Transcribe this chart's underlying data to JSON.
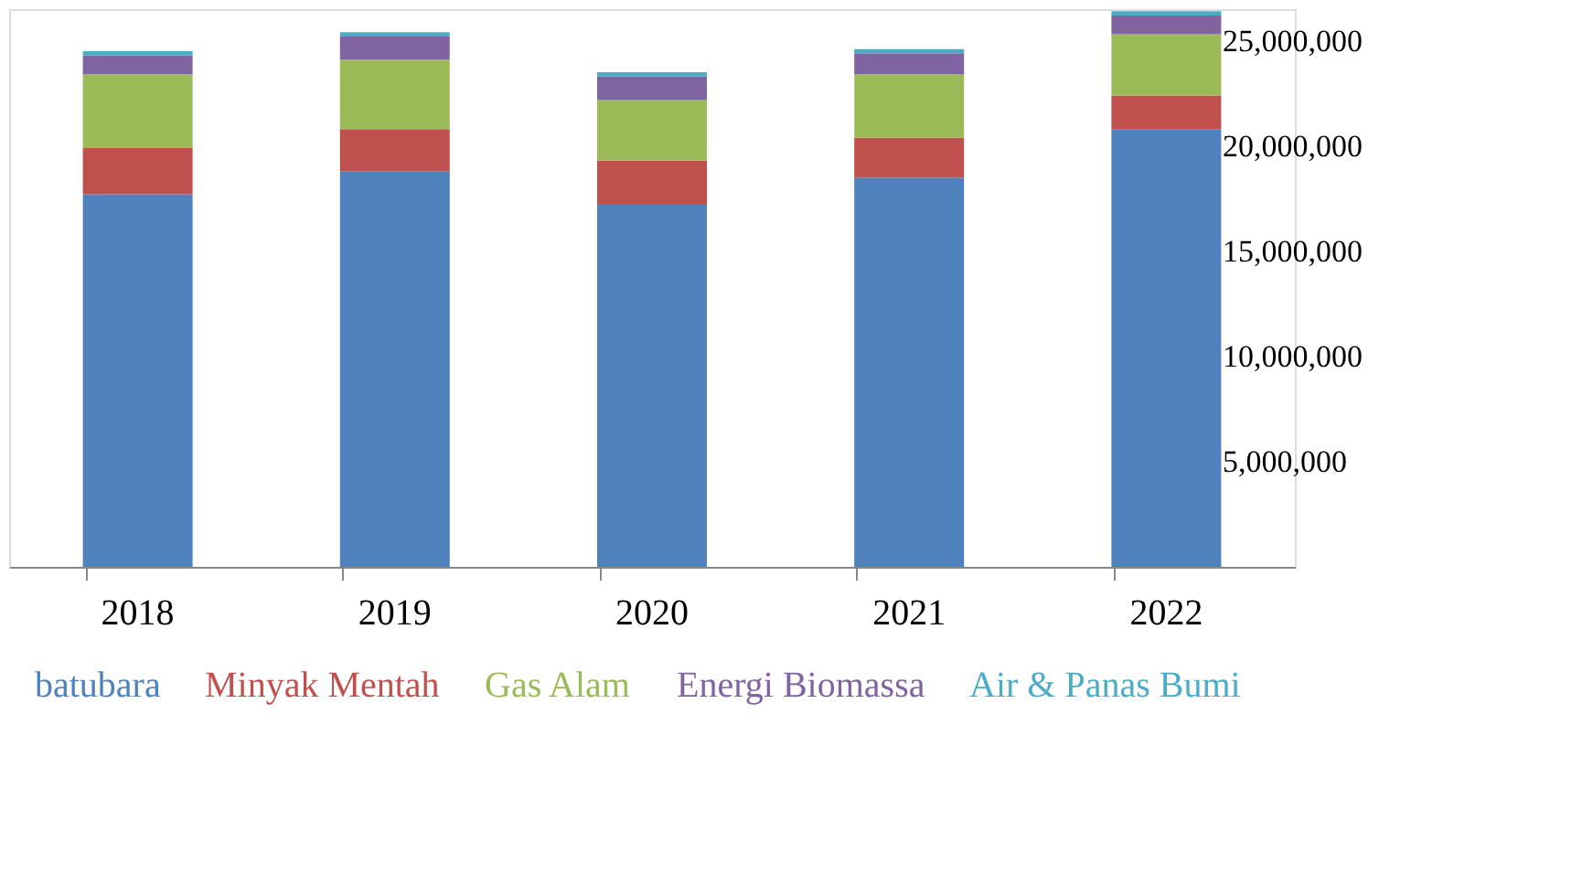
{
  "chart_data": {
    "type": "bar",
    "stacked": true,
    "categories": [
      "2018",
      "2019",
      "2020",
      "2021",
      "2022"
    ],
    "series": [
      {
        "name": "batubara",
        "color": "#4f81bd",
        "values": [
          17700000,
          18800000,
          17200000,
          18500000,
          20800000
        ]
      },
      {
        "name": "Minyak Mentah",
        "color": "#c0504d",
        "values": [
          2200000,
          2000000,
          2100000,
          1900000,
          1600000
        ]
      },
      {
        "name": "Gas Alam",
        "color": "#9bbb59",
        "values": [
          3500000,
          3300000,
          2900000,
          3000000,
          2900000
        ]
      },
      {
        "name": "Energi Biomassa",
        "color": "#8064a2",
        "values": [
          900000,
          1100000,
          1100000,
          1000000,
          900000
        ]
      },
      {
        "name": "Air & Panas Bumi",
        "color": "#4bacc6",
        "values": [
          200000,
          200000,
          200000,
          200000,
          200000
        ]
      }
    ],
    "ylim": [
      0,
      26500000
    ],
    "yticks": [
      {
        "value": 5000000,
        "label": "5,000,000"
      },
      {
        "value": 10000000,
        "label": "10,000,000"
      },
      {
        "value": 15000000,
        "label": "15,000,000"
      },
      {
        "value": 20000000,
        "label": "20,000,000"
      },
      {
        "value": 25000000,
        "label": "25,000,000"
      }
    ],
    "grid": false,
    "legend": "bottom"
  }
}
